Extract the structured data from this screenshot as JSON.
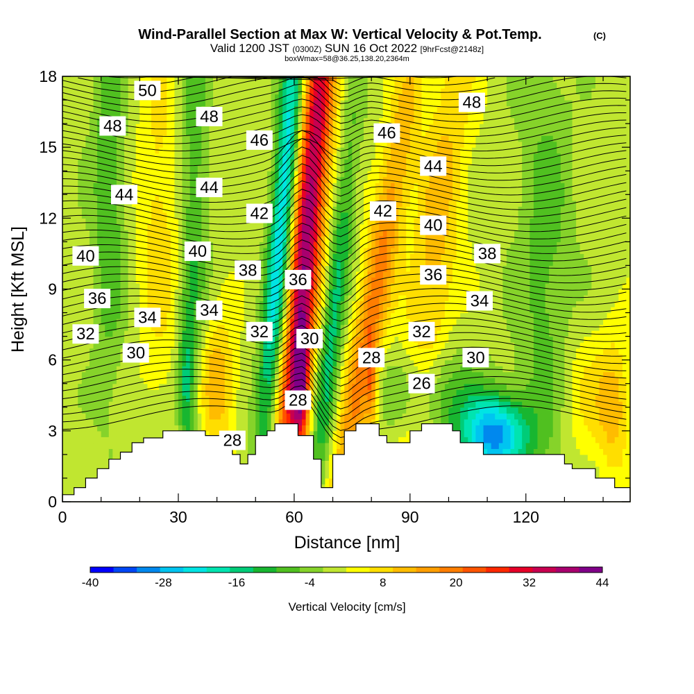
{
  "title": {
    "main": "Wind-Parallel Section at Max W: Vertical Velocity & Pot.Temp.",
    "copyright": "(C)",
    "valid_prefix": "Valid 1200 JST",
    "valid_utc": "(0300Z)",
    "valid_date": "SUN 16 Oct 2022",
    "forecast": "[9hrFcst@2148z]",
    "box": "boxWmax=58@36.25,138.20,2364m"
  },
  "chart_data": {
    "type": "heatmap",
    "xlabel": "Distance [nm]",
    "ylabel": "Height [Kft MSL]",
    "xlim": [
      0,
      147
    ],
    "ylim": [
      0,
      18
    ],
    "x_ticks": [
      0,
      30,
      60,
      90,
      120
    ],
    "y_ticks": [
      0,
      3,
      6,
      9,
      12,
      15,
      18
    ],
    "x_tick_labels": [
      "0",
      "30",
      "60",
      "90",
      "120"
    ],
    "y_tick_labels": [
      "0",
      "3",
      "6",
      "9",
      "12",
      "15",
      "18"
    ],
    "colorbar": {
      "label": "Vertical Velocity [cm/s]",
      "tick_labels": [
        "-40",
        "-28",
        "-16",
        "-4",
        "8",
        "20",
        "32",
        "44"
      ],
      "min": -40,
      "max": 44,
      "step": 4,
      "colors": [
        "#0000ff",
        "#0046f5",
        "#0088ee",
        "#00c4f0",
        "#00e4e4",
        "#00e4b0",
        "#00cc78",
        "#18b630",
        "#50c020",
        "#86d32a",
        "#c0e630",
        "#ffff00",
        "#ffde00",
        "#ffbc00",
        "#ff9e00",
        "#ff7e00",
        "#ff5400",
        "#ff2800",
        "#e60028",
        "#c80050",
        "#a8006e",
        "#800088"
      ]
    },
    "terrain": [
      [
        0,
        0.3
      ],
      [
        3,
        0.3
      ],
      [
        3,
        0.6
      ],
      [
        6,
        0.6
      ],
      [
        6,
        1.0
      ],
      [
        9,
        1.0
      ],
      [
        9,
        1.4
      ],
      [
        12,
        1.4
      ],
      [
        12,
        1.8
      ],
      [
        15,
        1.8
      ],
      [
        15,
        2.1
      ],
      [
        18,
        2.1
      ],
      [
        18,
        2.5
      ],
      [
        21,
        2.5
      ],
      [
        21,
        2.7
      ],
      [
        26,
        2.7
      ],
      [
        26,
        3.0
      ],
      [
        37,
        3.0
      ],
      [
        37,
        2.8
      ],
      [
        41,
        2.8
      ],
      [
        41,
        2.5
      ],
      [
        44,
        2.5
      ],
      [
        44,
        2.0
      ],
      [
        46,
        2.0
      ],
      [
        46,
        1.6
      ],
      [
        48,
        1.6
      ],
      [
        48,
        2.0
      ],
      [
        50,
        2.0
      ],
      [
        50,
        2.8
      ],
      [
        53,
        2.8
      ],
      [
        53,
        3.0
      ],
      [
        55,
        3.0
      ],
      [
        55,
        3.3
      ],
      [
        61,
        3.3
      ],
      [
        61,
        2.8
      ],
      [
        65,
        2.8
      ],
      [
        65,
        1.8
      ],
      [
        67,
        1.8
      ],
      [
        67,
        0.6
      ],
      [
        70,
        0.6
      ],
      [
        70,
        2.0
      ],
      [
        73,
        2.0
      ],
      [
        73,
        3.0
      ],
      [
        76,
        3.0
      ],
      [
        76,
        3.3
      ],
      [
        82,
        3.3
      ],
      [
        82,
        2.8
      ],
      [
        84,
        2.8
      ],
      [
        84,
        2.5
      ],
      [
        90,
        2.5
      ],
      [
        90,
        3.0
      ],
      [
        93,
        3.0
      ],
      [
        93,
        3.3
      ],
      [
        101,
        3.3
      ],
      [
        101,
        3.0
      ],
      [
        103,
        3.0
      ],
      [
        103,
        2.5
      ],
      [
        109,
        2.5
      ],
      [
        109,
        2.0
      ],
      [
        130,
        2.0
      ],
      [
        130,
        1.6
      ],
      [
        132,
        1.6
      ],
      [
        132,
        1.4
      ],
      [
        138,
        1.4
      ],
      [
        138,
        1.0
      ],
      [
        143,
        1.0
      ],
      [
        143,
        0.6
      ],
      [
        147,
        0.6
      ]
    ],
    "velocity_features": [
      {
        "x": 63,
        "y": 11,
        "sx": 3.0,
        "sy": 9,
        "w": 42,
        "tilt": 0.18
      },
      {
        "x": 61.5,
        "y": 5.0,
        "sx": 1.6,
        "sy": 1.8,
        "w": 30,
        "tilt": 0
      },
      {
        "x": 57,
        "y": 12,
        "sx": 2.2,
        "sy": 8,
        "w": -28,
        "tilt": 0.16
      },
      {
        "x": 60,
        "y": 6,
        "sx": 1.5,
        "sy": 2.5,
        "w": -10,
        "tilt": 0
      },
      {
        "x": 80,
        "y": 8,
        "sx": 3.0,
        "sy": 8,
        "w": 20,
        "tilt": 0.34
      },
      {
        "x": 70,
        "y": 7.5,
        "sx": 2.0,
        "sy": 6,
        "w": -16,
        "tilt": 0.2
      },
      {
        "x": 80,
        "y": 5,
        "sx": 1.0,
        "sy": 1.5,
        "w": 12,
        "tilt": 0
      },
      {
        "x": 96,
        "y": 10,
        "sx": 4.5,
        "sy": 9,
        "w": 12,
        "tilt": 0.22
      },
      {
        "x": 112,
        "y": 2.8,
        "sx": 6,
        "sy": 1.2,
        "w": -32,
        "tilt": 0
      },
      {
        "x": 95,
        "y": 4.5,
        "sx": 8,
        "sy": 1.5,
        "w": -12,
        "tilt": 0
      },
      {
        "x": 125,
        "y": 10,
        "sx": 5,
        "sy": 7,
        "w": -8,
        "tilt": 0
      },
      {
        "x": 32,
        "y": 5,
        "sx": 1.5,
        "sy": 2.0,
        "w": -14,
        "tilt": 0
      },
      {
        "x": 40,
        "y": 5,
        "sx": 3.5,
        "sy": 2.0,
        "w": 14,
        "tilt": 0
      },
      {
        "x": 34,
        "y": 12,
        "sx": 2.5,
        "sy": 7,
        "w": -10,
        "tilt": 0
      },
      {
        "x": 12,
        "y": 13,
        "sx": 3,
        "sy": 6,
        "w": -10,
        "tilt": 0
      },
      {
        "x": 25,
        "y": 12,
        "sx": 4,
        "sy": 6,
        "w": 8,
        "tilt": 0
      },
      {
        "x": 143,
        "y": 4,
        "sx": 3,
        "sy": 2,
        "w": 12,
        "tilt": 0
      },
      {
        "x": 135,
        "y": 4.5,
        "sx": 5,
        "sy": 2,
        "w": 6,
        "tilt": 0
      }
    ],
    "theta_labels": [
      {
        "text": "50",
        "x": 22,
        "y": 17.4
      },
      {
        "text": "48",
        "x": 13,
        "y": 15.9
      },
      {
        "text": "48",
        "x": 38,
        "y": 16.3
      },
      {
        "text": "48",
        "x": 106,
        "y": 16.9
      },
      {
        "text": "46",
        "x": 51,
        "y": 15.3
      },
      {
        "text": "46",
        "x": 84,
        "y": 15.6
      },
      {
        "text": "44",
        "x": 16,
        "y": 13.0
      },
      {
        "text": "44",
        "x": 38,
        "y": 13.3
      },
      {
        "text": "44",
        "x": 96,
        "y": 14.2
      },
      {
        "text": "42",
        "x": 51,
        "y": 12.2
      },
      {
        "text": "42",
        "x": 83,
        "y": 12.3
      },
      {
        "text": "40",
        "x": 6,
        "y": 10.4
      },
      {
        "text": "40",
        "x": 35,
        "y": 10.6
      },
      {
        "text": "40",
        "x": 96,
        "y": 11.7
      },
      {
        "text": "38",
        "x": 48,
        "y": 9.8
      },
      {
        "text": "38",
        "x": 110,
        "y": 10.5
      },
      {
        "text": "36",
        "x": 9,
        "y": 8.6
      },
      {
        "text": "36",
        "x": 61,
        "y": 9.4
      },
      {
        "text": "36",
        "x": 96,
        "y": 9.6
      },
      {
        "text": "34",
        "x": 22,
        "y": 7.8
      },
      {
        "text": "34",
        "x": 38,
        "y": 8.1
      },
      {
        "text": "34",
        "x": 108,
        "y": 8.5
      },
      {
        "text": "32",
        "x": 6,
        "y": 7.1
      },
      {
        "text": "32",
        "x": 51,
        "y": 7.2
      },
      {
        "text": "32",
        "x": 93,
        "y": 7.2
      },
      {
        "text": "30",
        "x": 19,
        "y": 6.3
      },
      {
        "text": "30",
        "x": 64,
        "y": 6.9
      },
      {
        "text": "30",
        "x": 107,
        "y": 6.1
      },
      {
        "text": "28",
        "x": 80,
        "y": 6.1
      },
      {
        "text": "28",
        "x": 61,
        "y": 4.3
      },
      {
        "text": "28",
        "x": 44,
        "y": 2.6
      },
      {
        "text": "26",
        "x": 93,
        "y": 5.0
      }
    ]
  }
}
